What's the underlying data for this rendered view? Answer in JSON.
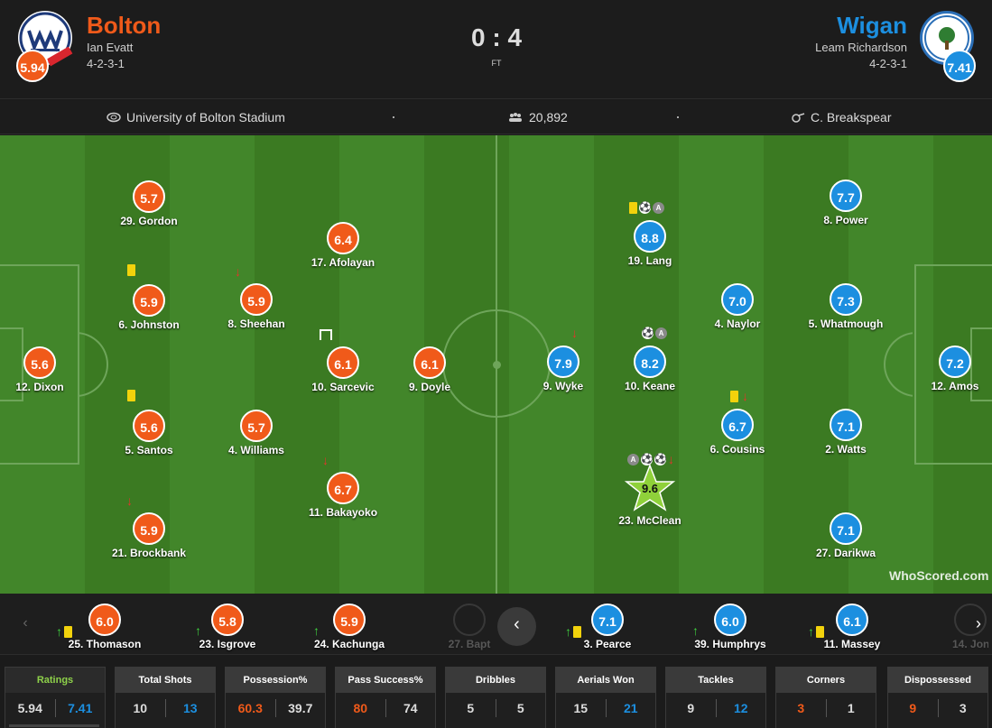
{
  "match": {
    "score": "0 : 4",
    "status": "FT"
  },
  "home": {
    "name": "Bolton",
    "manager": "Ian Evatt",
    "formation": "4-2-3-1",
    "rating": "5.94",
    "color": "#f05a1a"
  },
  "away": {
    "name": "Wigan",
    "manager": "Leam Richardson",
    "formation": "4-2-3-1",
    "rating": "7.41",
    "color": "#1c8fe0"
  },
  "info": {
    "stadium": "University of Bolton Stadium",
    "attendance": "20,892",
    "referee": "C. Breakspear"
  },
  "home_players": [
    {
      "rating": "5.7",
      "name": "29. Gordon"
    },
    {
      "rating": "5.9",
      "name": "6. Johnston"
    },
    {
      "rating": "5.6",
      "name": "12. Dixon"
    },
    {
      "rating": "5.6",
      "name": "5. Santos"
    },
    {
      "rating": "5.9",
      "name": "21. Brockbank"
    },
    {
      "rating": "5.9",
      "name": "8. Sheehan"
    },
    {
      "rating": "5.7",
      "name": "4. Williams"
    },
    {
      "rating": "6.4",
      "name": "17. Afolayan"
    },
    {
      "rating": "6.1",
      "name": "10. Sarcevic"
    },
    {
      "rating": "6.7",
      "name": "11. Bakayoko"
    },
    {
      "rating": "6.1",
      "name": "9. Doyle"
    }
  ],
  "away_players": [
    {
      "rating": "8.8",
      "name": "19. Lang"
    },
    {
      "rating": "7.9",
      "name": "9. Wyke"
    },
    {
      "rating": "8.2",
      "name": "10. Keane"
    },
    {
      "rating": "9.6",
      "name": "23. McClean"
    },
    {
      "rating": "7.0",
      "name": "4. Naylor"
    },
    {
      "rating": "6.7",
      "name": "6. Cousins"
    },
    {
      "rating": "7.7",
      "name": "8. Power"
    },
    {
      "rating": "7.3",
      "name": "5. Whatmough"
    },
    {
      "rating": "7.1",
      "name": "2. Watts"
    },
    {
      "rating": "7.1",
      "name": "27. Darikwa"
    },
    {
      "rating": "7.2",
      "name": "12. Amos"
    }
  ],
  "subs": [
    {
      "rating": "6.0",
      "name": "25. Thomason"
    },
    {
      "rating": "5.8",
      "name": "23. Isgrove"
    },
    {
      "rating": "5.9",
      "name": "24. Kachunga"
    },
    {
      "name": "27. Bapt"
    },
    {
      "rating": "7.1",
      "name": "3. Pearce"
    },
    {
      "rating": "6.0",
      "name": "39. Humphrys"
    },
    {
      "rating": "6.1",
      "name": "11. Massey"
    },
    {
      "name": "14. Jon"
    }
  ],
  "stats": [
    {
      "label": "Ratings",
      "home": "5.94",
      "away": "7.41"
    },
    {
      "label": "Total Shots",
      "home": "10",
      "away": "13"
    },
    {
      "label": "Possession%",
      "home": "60.3",
      "away": "39.7"
    },
    {
      "label": "Pass Success%",
      "home": "80",
      "away": "74"
    },
    {
      "label": "Dribbles",
      "home": "5",
      "away": "5"
    },
    {
      "label": "Aerials Won",
      "home": "15",
      "away": "21"
    },
    {
      "label": "Tackles",
      "home": "9",
      "away": "12"
    },
    {
      "label": "Corners",
      "home": "3",
      "away": "1"
    },
    {
      "label": "Dispossessed",
      "home": "9",
      "away": "3"
    }
  ],
  "watermark": "WhoScored.com",
  "icons": {
    "stadium": "stadium-icon",
    "attendance": "crowd-icon",
    "referee": "whistle-icon"
  }
}
